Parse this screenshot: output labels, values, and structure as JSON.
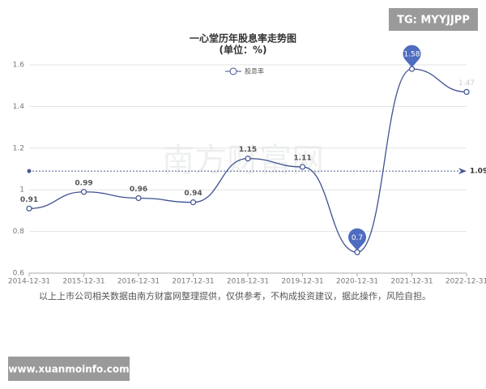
{
  "chart_data": {
    "type": "line",
    "title": "一心堂历年股息率走势图",
    "subtitle": "(单位：%)",
    "categories": [
      "2014-12-31",
      "2015-12-31",
      "2016-12-31",
      "2017-12-31",
      "2018-12-31",
      "2019-12-31",
      "2020-12-31",
      "2021-12-31",
      "2022-12-31"
    ],
    "series": [
      {
        "name": "股息率",
        "color": "#3f5190",
        "values": [
          0.91,
          0.99,
          0.96,
          0.94,
          1.15,
          1.11,
          0.7,
          1.58,
          1.47
        ]
      }
    ],
    "average": 1.09,
    "ylim": [
      0.6,
      1.6
    ],
    "yticks": [
      0.6,
      0.8,
      1,
      1.2,
      1.4,
      1.6
    ],
    "grid": true
  },
  "watermark_top": "TG: MYYJJPP",
  "watermark_center": "南方财富网",
  "footnote": "以上上市公司相关数据由南方财富网整理提供，仅供参考，不构成投资建议，据此操作，风险自担。",
  "watermark_bottom": "www.xuanmoinfo.com"
}
